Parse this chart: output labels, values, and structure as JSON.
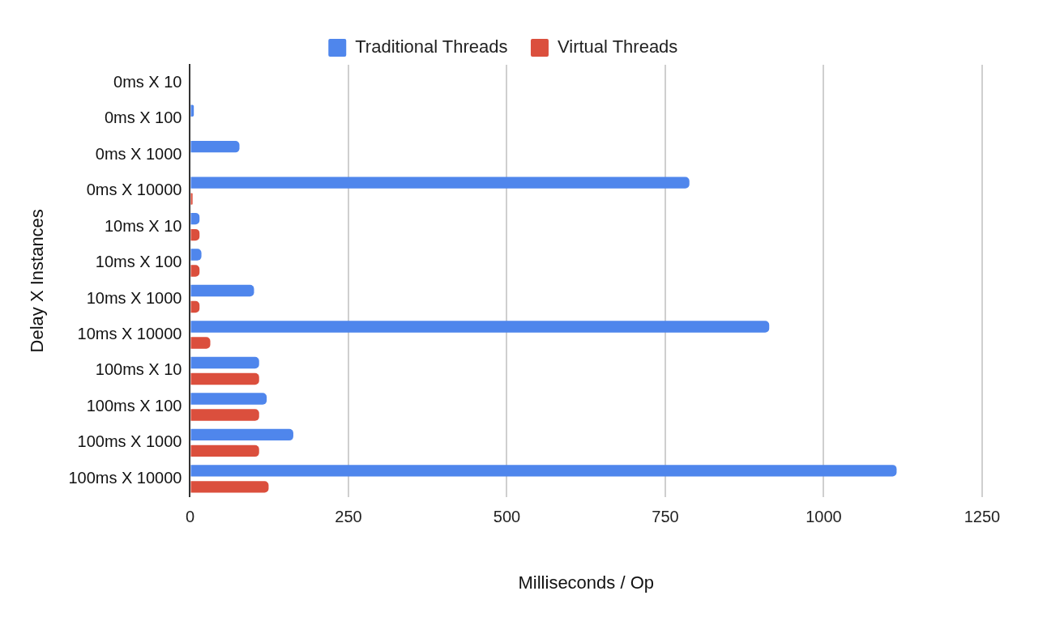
{
  "chart_data": {
    "type": "bar",
    "orientation": "horizontal",
    "xlabel": "Milliseconds / Op",
    "ylabel": "Delay X Instances",
    "categories": [
      "0ms X 10",
      "0ms X 100",
      "0ms X 1000",
      "0ms X 10000",
      "10ms X 10",
      "10ms X 100",
      "10ms X 1000",
      "10ms X 10000",
      "100ms X 10",
      "100ms X 100",
      "100ms X 1000",
      "100ms X 10000"
    ],
    "series": [
      {
        "name": "Traditional Threads",
        "color": "#4f86ec",
        "values": [
          0,
          6,
          78,
          788,
          15,
          18,
          101,
          914,
          109,
          121,
          163,
          1115
        ]
      },
      {
        "name": "Virtual Threads",
        "color": "#db4f3d",
        "values": [
          0,
          0,
          0,
          4,
          15,
          15,
          15,
          32,
          109,
          109,
          109,
          124
        ]
      }
    ],
    "xlim": [
      0,
      1250
    ],
    "xticks": [
      0,
      250,
      500,
      750,
      1000,
      1250
    ],
    "grid": "x",
    "legend": "top"
  }
}
